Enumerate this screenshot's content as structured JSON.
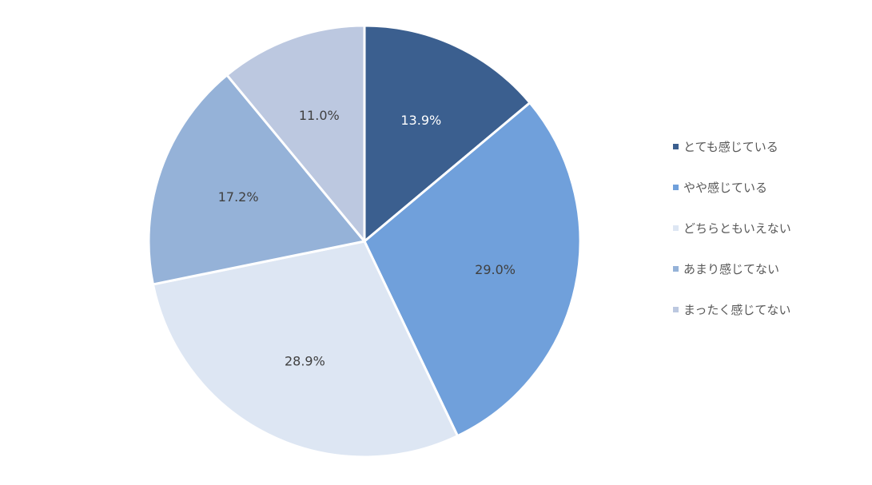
{
  "chart_data": {
    "type": "pie",
    "title": "",
    "categories": [
      "とても感じている",
      "やや感じている",
      "どちらともいえない",
      "あまり感じてない",
      "まったく感じてない"
    ],
    "values": [
      13.9,
      29.0,
      28.9,
      17.2,
      11.0
    ],
    "value_labels": [
      "13.9%",
      "29.0%",
      "28.9%",
      "17.2%",
      "11.0%"
    ],
    "colors": [
      "#3b5f8f",
      "#70a0db",
      "#dde6f3",
      "#95b2d8",
      "#bcc8e0"
    ],
    "label_colors": [
      "#ffffff",
      "#404040",
      "#404040",
      "#404040",
      "#404040"
    ],
    "start_angle_deg": 0,
    "direction": "clockwise",
    "legend_position": "right"
  }
}
